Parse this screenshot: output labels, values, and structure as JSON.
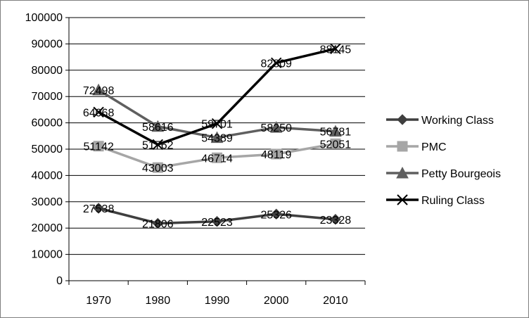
{
  "chart_data": {
    "type": "line",
    "title": "",
    "xlabel": "",
    "ylabel": "",
    "categories": [
      "1970",
      "1980",
      "1990",
      "2000",
      "2010"
    ],
    "ylim": [
      0,
      100000
    ],
    "yticks": [
      "0",
      "10000",
      "20000",
      "30000",
      "40000",
      "50000",
      "60000",
      "70000",
      "80000",
      "90000",
      "100000"
    ],
    "grid": true,
    "legend_position": "right",
    "series": [
      {
        "name": "Working Class",
        "values": [
          27538,
          21806,
          22523,
          25326,
          23328
        ],
        "color": "#3f3f3f",
        "marker": "diamond"
      },
      {
        "name": "PMC",
        "values": [
          51142,
          43003,
          46714,
          48119,
          52051
        ],
        "color": "#a6a6a6",
        "marker": "square"
      },
      {
        "name": "Petty Bourgeois",
        "values": [
          72498,
          58616,
          54389,
          58250,
          56781
        ],
        "color": "#5f5f5f",
        "marker": "triangle"
      },
      {
        "name": "Ruling Class",
        "values": [
          64068,
          51762,
          59701,
          82809,
          88145
        ],
        "color": "#000000",
        "marker": "x"
      }
    ]
  }
}
